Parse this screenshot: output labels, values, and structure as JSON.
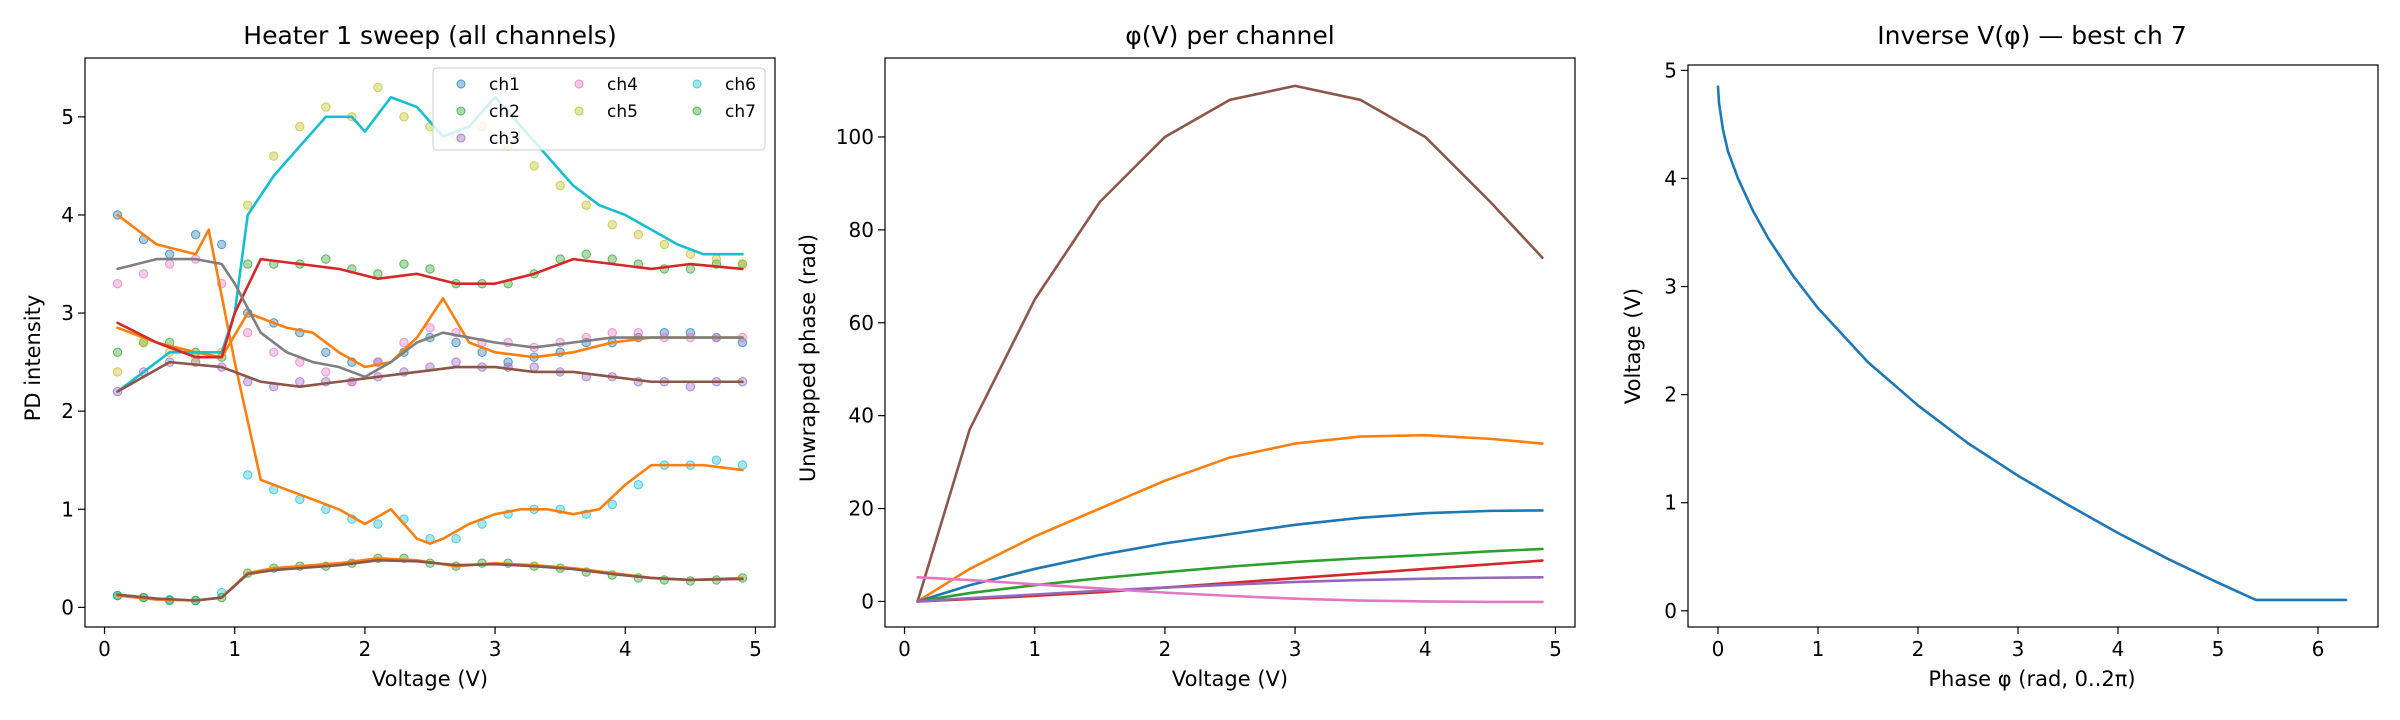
{
  "chart_data": [
    {
      "type": "scatter",
      "title": "Heater 1 sweep (all channels)",
      "xlabel": "Voltage (V)",
      "ylabel": "PD intensity",
      "xlim": [
        -0.15,
        5.15
      ],
      "ylim": [
        -0.2,
        5.6
      ],
      "xticks": [
        0,
        1,
        2,
        3,
        4,
        5
      ],
      "yticks": [
        0,
        1,
        2,
        3,
        4,
        5
      ],
      "grid": false,
      "legend": {
        "placement": "top-right",
        "columns": 3
      },
      "series": [
        {
          "name": "ch1",
          "color": "#1f77b4",
          "mode": "markers",
          "x": [
            0.1,
            0.3,
            0.5,
            0.7,
            0.9,
            1.1,
            1.3,
            1.5,
            1.7,
            1.9,
            2.1,
            2.3,
            2.5,
            2.7,
            2.9,
            3.1,
            3.3,
            3.5,
            3.7,
            3.9,
            4.1,
            4.3,
            4.5,
            4.7,
            4.9
          ],
          "y": [
            4.0,
            3.75,
            3.6,
            3.8,
            3.7,
            3.0,
            2.9,
            2.8,
            2.6,
            2.5,
            2.5,
            2.6,
            2.75,
            2.7,
            2.6,
            2.5,
            2.55,
            2.6,
            2.7,
            2.7,
            2.75,
            2.8,
            2.8,
            2.75,
            2.7
          ]
        },
        {
          "name": "ch2",
          "color": "#2ca02c",
          "mode": "markers",
          "x": [
            0.1,
            0.3,
            0.5,
            0.7,
            0.9,
            1.1,
            1.3,
            1.5,
            1.7,
            1.9,
            2.1,
            2.3,
            2.5,
            2.7,
            2.9,
            3.1,
            3.3,
            3.5,
            3.7,
            3.9,
            4.1,
            4.3,
            4.5,
            4.7,
            4.9
          ],
          "y": [
            2.6,
            2.7,
            2.7,
            2.6,
            2.55,
            3.5,
            3.5,
            3.5,
            3.55,
            3.45,
            3.4,
            3.5,
            3.45,
            3.3,
            3.3,
            3.3,
            3.4,
            3.55,
            3.6,
            3.55,
            3.5,
            3.45,
            3.45,
            3.5,
            3.5
          ]
        },
        {
          "name": "ch3",
          "color": "#9467bd",
          "mode": "markers",
          "x": [
            0.1,
            0.3,
            0.5,
            0.7,
            0.9,
            1.1,
            1.3,
            1.5,
            1.7,
            1.9,
            2.1,
            2.3,
            2.5,
            2.7,
            2.9,
            3.1,
            3.3,
            3.5,
            3.7,
            3.9,
            4.1,
            4.3,
            4.5,
            4.7,
            4.9
          ],
          "y": [
            2.2,
            2.4,
            2.5,
            2.5,
            2.45,
            2.3,
            2.25,
            2.3,
            2.3,
            2.3,
            2.35,
            2.4,
            2.45,
            2.5,
            2.45,
            2.45,
            2.45,
            2.4,
            2.35,
            2.35,
            2.3,
            2.3,
            2.25,
            2.3,
            2.3
          ]
        },
        {
          "name": "ch4",
          "color": "#e377c2",
          "mode": "markers",
          "x": [
            0.1,
            0.3,
            0.5,
            0.7,
            0.9,
            1.1,
            1.3,
            1.5,
            1.7,
            1.9,
            2.1,
            2.3,
            2.5,
            2.7,
            2.9,
            3.1,
            3.3,
            3.5,
            3.7,
            3.9,
            4.1,
            4.3,
            4.5,
            4.7,
            4.9
          ],
          "y": [
            3.3,
            3.4,
            3.5,
            3.55,
            3.3,
            2.8,
            2.6,
            2.5,
            2.4,
            2.3,
            2.5,
            2.7,
            2.85,
            2.8,
            2.7,
            2.7,
            2.65,
            2.7,
            2.75,
            2.8,
            2.8,
            2.75,
            2.75,
            2.75,
            2.75
          ]
        },
        {
          "name": "ch5",
          "color": "#bcbd22",
          "mode": "markers",
          "x": [
            0.1,
            0.3,
            0.5,
            0.7,
            0.9,
            1.1,
            1.3,
            1.5,
            1.7,
            1.9,
            2.1,
            2.3,
            2.5,
            2.7,
            2.9,
            3.1,
            3.3,
            3.5,
            3.7,
            3.9,
            4.1,
            4.3,
            4.5,
            4.7,
            4.9
          ],
          "y": [
            2.4,
            2.7,
            2.6,
            2.55,
            2.6,
            4.1,
            4.6,
            4.9,
            5.1,
            5.0,
            5.3,
            5.0,
            4.9,
            4.8,
            4.9,
            4.7,
            4.5,
            4.3,
            4.1,
            3.9,
            3.8,
            3.7,
            3.6,
            3.55,
            3.5
          ]
        },
        {
          "name": "ch6",
          "color": "#17becf",
          "mode": "markers",
          "x": [
            0.1,
            0.3,
            0.5,
            0.7,
            0.9,
            1.1,
            1.3,
            1.5,
            1.7,
            1.9,
            2.1,
            2.3,
            2.5,
            2.7,
            2.9,
            3.1,
            3.3,
            3.5,
            3.7,
            3.9,
            4.1,
            4.3,
            4.5,
            4.7,
            4.9
          ],
          "y": [
            0.12,
            0.1,
            0.08,
            0.07,
            0.15,
            1.35,
            1.2,
            1.1,
            1.0,
            0.9,
            0.85,
            0.9,
            0.7,
            0.7,
            0.85,
            0.95,
            1.0,
            1.0,
            0.95,
            1.05,
            1.25,
            1.45,
            1.45,
            1.5,
            1.45
          ]
        },
        {
          "name": "ch7",
          "color": "#2ca02c",
          "mode": "markers",
          "x": [
            0.1,
            0.3,
            0.5,
            0.7,
            0.9,
            1.1,
            1.3,
            1.5,
            1.7,
            1.9,
            2.1,
            2.3,
            2.5,
            2.7,
            2.9,
            3.1,
            3.3,
            3.5,
            3.7,
            3.9,
            4.1,
            4.3,
            4.5,
            4.7,
            4.9
          ],
          "y": [
            0.12,
            0.1,
            0.07,
            0.07,
            0.1,
            0.35,
            0.4,
            0.42,
            0.42,
            0.45,
            0.5,
            0.5,
            0.45,
            0.42,
            0.45,
            0.45,
            0.42,
            0.4,
            0.36,
            0.33,
            0.3,
            0.28,
            0.27,
            0.28,
            0.3
          ]
        },
        {
          "color": "#ff7f0e",
          "mode": "line",
          "x": [
            0.1,
            0.4,
            0.7,
            0.8,
            1.0,
            1.2,
            1.4,
            1.6,
            1.8,
            2.0,
            2.2,
            2.4,
            2.5,
            2.6,
            2.8,
            3.0,
            3.2,
            3.4,
            3.6,
            3.8,
            4.0,
            4.2,
            4.4,
            4.6,
            4.9
          ],
          "y": [
            4.0,
            3.7,
            3.6,
            3.85,
            2.5,
            1.3,
            1.2,
            1.1,
            1.0,
            0.85,
            1.0,
            0.7,
            0.65,
            0.7,
            0.85,
            0.95,
            1.0,
            1.0,
            0.95,
            1.0,
            1.25,
            1.45,
            1.45,
            1.45,
            1.4
          ]
        },
        {
          "color": "#ff7f0e",
          "mode": "line",
          "x": [
            0.1,
            0.4,
            0.7,
            0.9,
            1.1,
            1.4,
            1.6,
            1.8,
            2.0,
            2.2,
            2.4,
            2.6,
            2.8,
            3.0,
            3.3,
            3.6,
            3.9,
            4.2,
            4.5,
            4.9
          ],
          "y": [
            2.85,
            2.7,
            2.6,
            2.55,
            3.0,
            2.85,
            2.8,
            2.6,
            2.45,
            2.5,
            2.75,
            3.15,
            2.7,
            2.6,
            2.55,
            2.6,
            2.7,
            2.75,
            2.75,
            2.75
          ]
        },
        {
          "color": "#17becf",
          "mode": "line",
          "x": [
            0.1,
            0.5,
            0.9,
            1.0,
            1.1,
            1.3,
            1.5,
            1.7,
            1.9,
            2.0,
            2.2,
            2.4,
            2.6,
            2.8,
            3.0,
            3.2,
            3.4,
            3.6,
            3.8,
            4.0,
            4.2,
            4.4,
            4.6,
            4.9
          ],
          "y": [
            2.2,
            2.6,
            2.6,
            3.0,
            4.0,
            4.4,
            4.7,
            5.0,
            5.0,
            4.85,
            5.2,
            5.1,
            4.8,
            4.9,
            5.2,
            4.9,
            4.6,
            4.3,
            4.1,
            4.0,
            3.85,
            3.7,
            3.6,
            3.6
          ]
        },
        {
          "color": "#d62728",
          "mode": "line",
          "x": [
            0.1,
            0.4,
            0.7,
            0.9,
            1.0,
            1.2,
            1.5,
            1.8,
            2.1,
            2.4,
            2.7,
            3.0,
            3.3,
            3.6,
            3.9,
            4.2,
            4.5,
            4.9
          ],
          "y": [
            2.9,
            2.7,
            2.55,
            2.55,
            3.0,
            3.55,
            3.5,
            3.45,
            3.35,
            3.4,
            3.3,
            3.3,
            3.4,
            3.55,
            3.5,
            3.45,
            3.5,
            3.45
          ]
        },
        {
          "color": "#8c564b",
          "mode": "line",
          "x": [
            0.1,
            0.5,
            0.9,
            1.2,
            1.5,
            1.8,
            2.1,
            2.4,
            2.7,
            3.0,
            3.3,
            3.6,
            3.9,
            4.2,
            4.5,
            4.9
          ],
          "y": [
            2.2,
            2.5,
            2.45,
            2.3,
            2.25,
            2.3,
            2.35,
            2.4,
            2.45,
            2.45,
            2.4,
            2.4,
            2.35,
            2.3,
            2.3,
            2.3
          ]
        },
        {
          "color": "#7f7f7f",
          "mode": "line",
          "x": [
            0.1,
            0.4,
            0.7,
            0.9,
            1.0,
            1.2,
            1.4,
            1.6,
            1.8,
            2.0,
            2.2,
            2.4,
            2.6,
            2.8,
            3.0,
            3.3,
            3.6,
            3.9,
            4.2,
            4.5,
            4.9
          ],
          "y": [
            3.45,
            3.55,
            3.55,
            3.5,
            3.3,
            2.8,
            2.6,
            2.5,
            2.45,
            2.35,
            2.5,
            2.7,
            2.8,
            2.75,
            2.7,
            2.65,
            2.7,
            2.75,
            2.75,
            2.75,
            2.75
          ]
        },
        {
          "color": "#ff7f0e",
          "mode": "line",
          "x": [
            0.1,
            0.4,
            0.7,
            0.9,
            1.1,
            1.3,
            1.5,
            1.8,
            2.1,
            2.4,
            2.7,
            3.0,
            3.3,
            3.6,
            3.9,
            4.2,
            4.5,
            4.9
          ],
          "y": [
            0.12,
            0.08,
            0.07,
            0.1,
            0.35,
            0.4,
            0.42,
            0.45,
            0.5,
            0.48,
            0.42,
            0.45,
            0.43,
            0.4,
            0.35,
            0.3,
            0.28,
            0.3
          ]
        },
        {
          "color": "#8c564b",
          "mode": "line",
          "x": [
            0.1,
            0.4,
            0.7,
            0.9,
            1.1,
            1.3,
            1.5,
            1.8,
            2.1,
            2.4,
            2.7,
            3.0,
            3.3,
            3.6,
            3.9,
            4.2,
            4.5,
            4.9
          ],
          "y": [
            0.13,
            0.09,
            0.07,
            0.1,
            0.34,
            0.38,
            0.4,
            0.43,
            0.48,
            0.47,
            0.43,
            0.44,
            0.42,
            0.39,
            0.34,
            0.3,
            0.28,
            0.29
          ]
        }
      ]
    },
    {
      "type": "line",
      "title": "φ(V) per channel",
      "xlabel": "Voltage (V)",
      "ylabel": "Unwrapped phase (rad)",
      "xlim": [
        -0.15,
        5.15
      ],
      "ylim": [
        -5.5,
        117
      ],
      "xticks": [
        0,
        1,
        2,
        3,
        4,
        5
      ],
      "yticks": [
        0,
        20,
        40,
        60,
        80,
        100
      ],
      "grid": false,
      "series": [
        {
          "color": "#8c564b",
          "x": [
            0.1,
            0.5,
            1.0,
            1.5,
            2.0,
            2.5,
            3.0,
            3.5,
            4.0,
            4.5,
            4.9
          ],
          "y": [
            0,
            37,
            65,
            86,
            100,
            108,
            111,
            108,
            100,
            86,
            74
          ]
        },
        {
          "color": "#ff7f0e",
          "x": [
            0.1,
            0.5,
            1.0,
            1.5,
            2.0,
            2.5,
            3.0,
            3.5,
            4.0,
            4.5,
            4.9
          ],
          "y": [
            0,
            7,
            14,
            20,
            26,
            31,
            34,
            35.5,
            35.8,
            35,
            34
          ]
        },
        {
          "color": "#1f77b4",
          "x": [
            0.1,
            0.5,
            1.0,
            1.5,
            2.0,
            2.5,
            3.0,
            3.5,
            4.0,
            4.5,
            4.9
          ],
          "y": [
            0,
            3.5,
            7,
            10,
            12.5,
            14.5,
            16.5,
            18,
            19,
            19.5,
            19.6
          ]
        },
        {
          "color": "#2ca02c",
          "x": [
            0.1,
            0.5,
            1.0,
            1.5,
            2.0,
            2.5,
            3.0,
            3.5,
            4.0,
            4.5,
            4.9
          ],
          "y": [
            0,
            1.8,
            3.5,
            5,
            6.3,
            7.5,
            8.5,
            9.3,
            10,
            10.8,
            11.3
          ]
        },
        {
          "color": "#d62728",
          "x": [
            0.1,
            0.5,
            1.0,
            1.5,
            2.0,
            2.5,
            3.0,
            3.5,
            4.0,
            4.5,
            4.9
          ],
          "y": [
            0,
            0.5,
            1.2,
            2,
            3,
            4,
            5,
            6,
            7,
            8,
            8.8
          ]
        },
        {
          "color": "#9467bd",
          "x": [
            0.1,
            0.5,
            1.0,
            1.5,
            2.0,
            2.5,
            3.0,
            3.5,
            4.0,
            4.5,
            4.9
          ],
          "y": [
            0,
            0.7,
            1.5,
            2.3,
            3,
            3.6,
            4.2,
            4.6,
            4.9,
            5.1,
            5.2
          ]
        },
        {
          "color": "#e377c2",
          "x": [
            0.1,
            0.5,
            1.0,
            1.5,
            2.0,
            2.5,
            3.0,
            3.5,
            4.0,
            4.5,
            4.9
          ],
          "y": [
            5.2,
            4.6,
            3.7,
            2.8,
            1.9,
            1.2,
            0.6,
            0.2,
            0,
            -0.1,
            -0.1
          ]
        }
      ]
    },
    {
      "type": "line",
      "title": "Inverse V(φ) — best ch 7",
      "xlabel": "Phase φ (rad, 0..2π)",
      "ylabel": "Voltage (V)",
      "xlim": [
        -0.3,
        6.6
      ],
      "ylim": [
        -0.15,
        5.05
      ],
      "xticks": [
        0,
        1,
        2,
        3,
        4,
        5,
        6
      ],
      "yticks": [
        0,
        1,
        2,
        3,
        4,
        5
      ],
      "grid": false,
      "series": [
        {
          "color": "#1f77b4",
          "x": [
            0,
            0.01,
            0.05,
            0.1,
            0.2,
            0.35,
            0.5,
            0.75,
            1.0,
            1.5,
            2.0,
            2.5,
            3.0,
            3.5,
            4.0,
            4.5,
            5.0,
            5.38,
            5.6,
            6.0,
            6.28
          ],
          "y": [
            4.85,
            4.7,
            4.45,
            4.25,
            4.0,
            3.7,
            3.45,
            3.1,
            2.8,
            2.3,
            1.9,
            1.55,
            1.25,
            0.98,
            0.72,
            0.48,
            0.26,
            0.1,
            0.1,
            0.1,
            0.1
          ]
        }
      ]
    }
  ]
}
